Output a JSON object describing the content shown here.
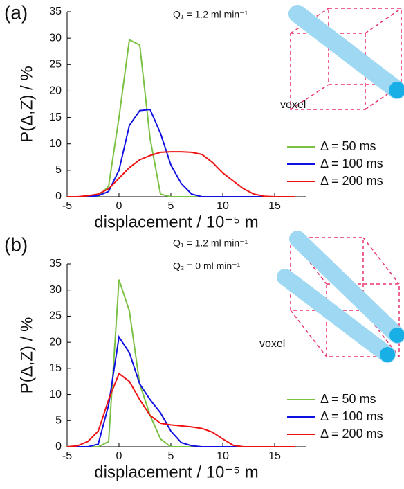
{
  "chart_data": [
    {
      "type": "line",
      "panel_label": "(a)",
      "ylabel": "P(Δ,Z) / %",
      "xlabel": "displacement / 10⁻⁵ m",
      "annotations": [
        "Q₁ = 1.2 ml min⁻¹",
        "voxel"
      ],
      "xlim": [
        -5,
        18
      ],
      "xticks": [
        -5,
        0,
        5,
        10,
        15
      ],
      "ylim": [
        0,
        35
      ],
      "yticks": [
        0,
        5,
        10,
        15,
        20,
        25,
        30,
        35
      ],
      "x": [
        -5,
        -4,
        -3,
        -2,
        -1,
        0,
        1,
        2,
        3,
        4,
        5,
        6,
        7,
        8,
        9,
        10,
        11,
        12,
        13,
        14,
        15,
        16,
        17
      ],
      "series": [
        {
          "name": "Δ = 50 ms",
          "color": "#7ac143",
          "values": [
            0,
            0,
            0,
            0,
            2,
            15,
            29.7,
            28.7,
            11,
            0.5,
            0,
            0,
            0,
            0,
            0,
            0,
            0,
            0,
            0,
            0,
            0,
            0,
            0
          ]
        },
        {
          "name": "Δ = 100 ms",
          "color": "#1010e0",
          "values": [
            0,
            0,
            0,
            0.2,
            1,
            5,
            13.5,
            16.3,
            16.5,
            12,
            6,
            2.5,
            0.5,
            0,
            0,
            0,
            0,
            0,
            0,
            0,
            0,
            0,
            0
          ]
        },
        {
          "name": "Δ = 200 ms",
          "color": "#ee1111",
          "values": [
            0,
            0,
            0.2,
            0.5,
            1.5,
            3.5,
            5.5,
            7,
            7.8,
            8.4,
            8.5,
            8.5,
            8.4,
            8,
            6.5,
            4.5,
            3,
            1.5,
            0.5,
            0.1,
            0,
            0,
            0
          ]
        }
      ]
    },
    {
      "type": "line",
      "panel_label": "(b)",
      "ylabel": "P(Δ,Z) / %",
      "xlabel": "displacement / 10⁻⁵ m",
      "annotations": [
        "Q₁ = 1.2 ml min⁻¹",
        "Q₂ = 0 ml min⁻¹",
        "voxel"
      ],
      "xlim": [
        -5,
        18
      ],
      "xticks": [
        -5,
        0,
        5,
        10,
        15
      ],
      "ylim": [
        0,
        35
      ],
      "yticks": [
        0,
        5,
        10,
        15,
        20,
        25,
        30,
        35
      ],
      "x": [
        -5,
        -4,
        -3,
        -2,
        -1,
        0,
        1,
        2,
        3,
        4,
        5,
        6,
        7,
        8,
        9,
        10,
        11,
        12,
        13,
        14,
        15,
        16,
        17
      ],
      "series": [
        {
          "name": "Δ = 50 ms",
          "color": "#7ac143",
          "values": [
            0,
            0,
            0,
            0,
            1,
            32,
            26,
            12,
            6,
            1.5,
            0,
            0,
            0,
            0,
            0,
            0,
            0,
            0,
            0,
            0,
            0,
            0,
            0
          ]
        },
        {
          "name": "Δ = 100 ms",
          "color": "#1010e0",
          "values": [
            0,
            0,
            0,
            0.5,
            8,
            21,
            18,
            12,
            9,
            6.5,
            3,
            0.8,
            0.2,
            0,
            0,
            0,
            0,
            0,
            0,
            0,
            0,
            0,
            0
          ]
        },
        {
          "name": "Δ = 200 ms",
          "color": "#ee1111",
          "values": [
            0,
            0.2,
            1,
            3,
            9,
            14,
            12.5,
            9,
            6,
            4.5,
            4.2,
            4,
            3.8,
            3.5,
            2.8,
            1.5,
            0.3,
            0,
            0,
            0,
            0,
            0,
            0
          ]
        }
      ]
    }
  ]
}
